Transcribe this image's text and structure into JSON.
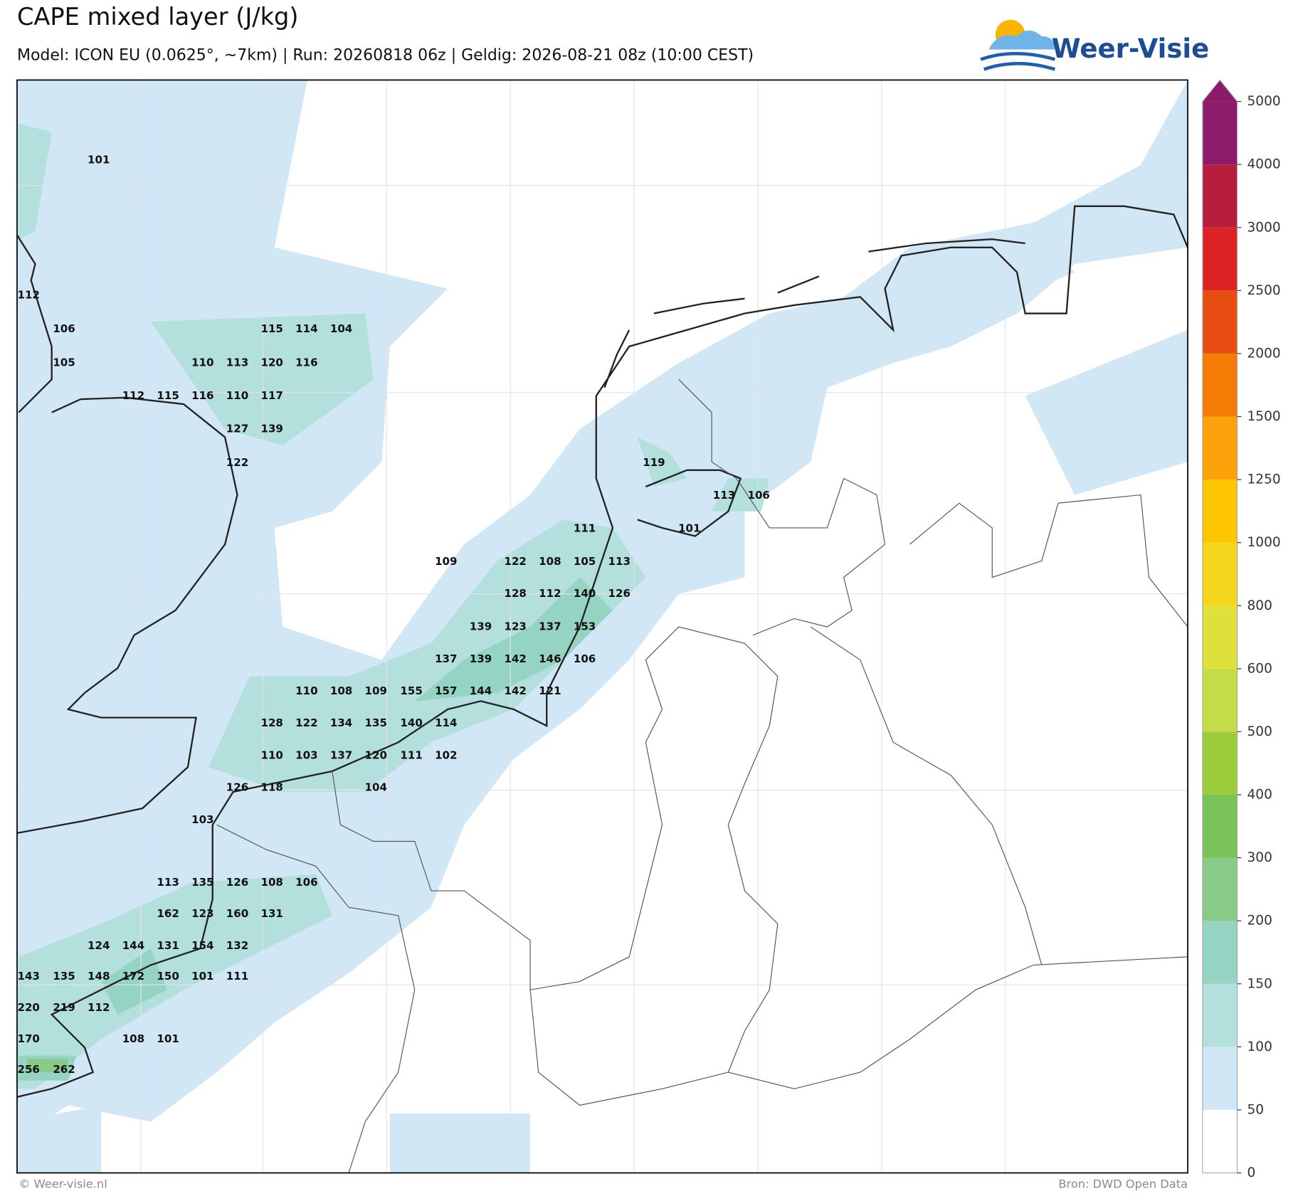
{
  "header": {
    "title": "CAPE mixed layer (J/kg)",
    "subtitle": "Model: ICON EU (0.0625°, ~7km)  |  Run: 20260818 06z  |  Geldig: 2026-08-21 08z (10:00 CEST)",
    "logo": "Weer-Visie"
  },
  "map": {
    "labels": [
      101,
      112,
      106,
      105,
      115,
      114,
      104,
      110,
      113,
      120,
      116,
      112,
      115,
      116,
      110,
      117,
      127,
      139,
      122,
      119,
      113,
      106,
      111,
      101,
      109,
      122,
      108,
      105,
      113,
      128,
      112,
      140,
      126,
      139,
      123,
      137,
      153,
      137,
      139,
      142,
      146,
      106,
      110,
      108,
      109,
      155,
      157,
      144,
      142,
      121,
      128,
      122,
      134,
      135,
      140,
      114,
      110,
      103,
      137,
      120,
      111,
      102,
      126,
      118,
      104,
      103,
      113,
      135,
      126,
      108,
      106,
      162,
      123,
      160,
      131,
      124,
      144,
      131,
      154,
      132,
      143,
      135,
      148,
      172,
      150,
      101,
      111,
      220,
      219,
      112,
      170,
      108,
      101,
      256,
      262
    ]
  },
  "colorbar": {
    "ticks": [
      0,
      50,
      100,
      150,
      200,
      300,
      400,
      500,
      600,
      800,
      1000,
      1250,
      1500,
      2000,
      2500,
      3000,
      4000,
      5000
    ],
    "colors": [
      "#ffffff",
      "#d2e7f5",
      "#b3dfdc",
      "#95d3c3",
      "#89ca89",
      "#79c257",
      "#9dcc3d",
      "#c4dc47",
      "#dfe13a",
      "#f2d51c",
      "#fcc500",
      "#fba20a",
      "#f57c06",
      "#e84e12",
      "#dc2222",
      "#b71d3d",
      "#8c1b6b"
    ]
  },
  "footer": {
    "left": "© Weer-visie.nl",
    "right": "Bron: DWD Open Data"
  }
}
